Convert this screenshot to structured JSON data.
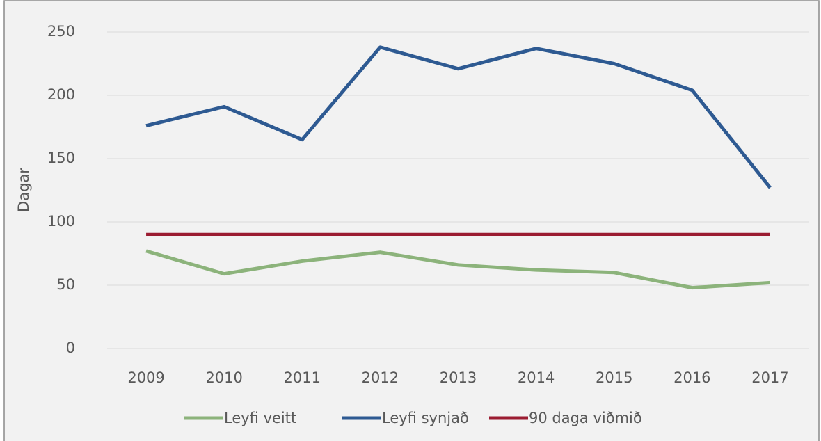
{
  "chart_data": {
    "type": "line",
    "y_label": "Dagar",
    "categories": [
      "2009",
      "2010",
      "2011",
      "2012",
      "2013",
      "2014",
      "2015",
      "2016",
      "2017"
    ],
    "series": [
      {
        "name": "Leyfi veitt",
        "color": "#8cb37b",
        "values": [
          77,
          59,
          69,
          76,
          66,
          62,
          60,
          48,
          52
        ]
      },
      {
        "name": "Leyfi synjað",
        "color": "#2e5a92",
        "values": [
          176,
          191,
          165,
          238,
          221,
          237,
          225,
          204,
          127
        ]
      },
      {
        "name": "90 daga viðmið",
        "color": "#9b1c31",
        "values": [
          90,
          90,
          90,
          90,
          90,
          90,
          90,
          90,
          90
        ]
      }
    ],
    "ylim": [
      0,
      250
    ],
    "yticks": [
      0,
      50,
      100,
      150,
      200,
      250
    ],
    "grid": true,
    "legend": "bottom"
  }
}
